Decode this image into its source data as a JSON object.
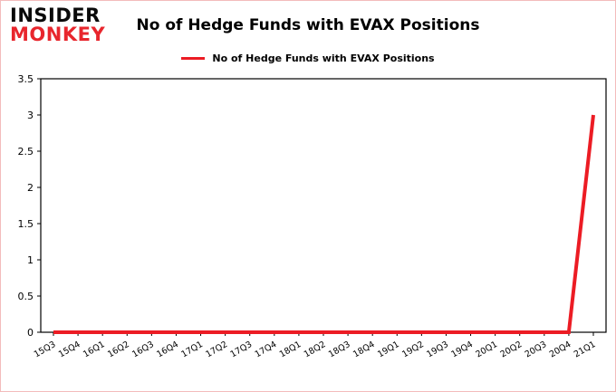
{
  "logo": {
    "line1": "INSIDER",
    "line2": "MONKEY"
  },
  "header": {
    "title": "No of Hedge Funds with EVAX Positions"
  },
  "legend": {
    "label": "No of Hedge Funds with EVAX Positions"
  },
  "colors": {
    "accent_red": "#ec1c24",
    "logo_red": "#e8262d",
    "axis": "#000000",
    "background": "#ffffff"
  },
  "chart_data": {
    "type": "line",
    "title": "No of Hedge Funds with EVAX Positions",
    "xlabel": "",
    "ylabel": "",
    "categories": [
      "15Q3",
      "15Q4",
      "16Q1",
      "16Q2",
      "16Q3",
      "16Q4",
      "17Q1",
      "17Q2",
      "17Q3",
      "17Q4",
      "18Q1",
      "18Q2",
      "18Q3",
      "18Q4",
      "19Q1",
      "19Q2",
      "19Q3",
      "19Q4",
      "20Q1",
      "20Q2",
      "20Q3",
      "20Q4",
      "21Q1"
    ],
    "series": [
      {
        "name": "No of Hedge Funds with EVAX Positions",
        "values": [
          0,
          0,
          0,
          0,
          0,
          0,
          0,
          0,
          0,
          0,
          0,
          0,
          0,
          0,
          0,
          0,
          0,
          0,
          0,
          0,
          0,
          0,
          3
        ]
      }
    ],
    "ylim": [
      0,
      3.5
    ],
    "yticks": [
      0,
      0.5,
      1,
      1.5,
      2,
      2.5,
      3,
      3.5
    ],
    "grid": "off",
    "legend_position": "top-center"
  }
}
